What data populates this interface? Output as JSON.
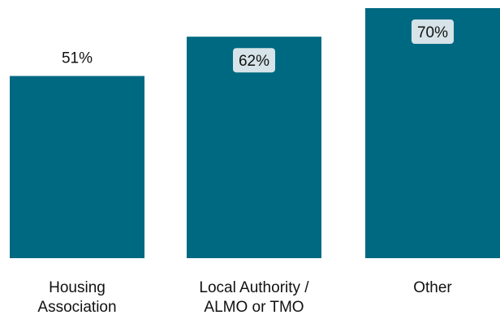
{
  "chart_data": {
    "type": "bar",
    "categories": [
      "Housing Association",
      "Local Authority / ALMO or TMO",
      "Other"
    ],
    "category_label_lines": [
      [
        "Housing",
        "Association"
      ],
      [
        "Local Authority /",
        "ALMO or TMO"
      ],
      [
        "Other"
      ]
    ],
    "values": [
      51,
      62,
      70
    ],
    "data_labels": [
      "51%",
      "62%",
      "70%"
    ],
    "unit": "%",
    "title": "",
    "xlabel": "",
    "ylabel": "",
    "ylim": [
      0,
      70
    ],
    "grid": false,
    "legend": "none",
    "colors": {
      "bar": "#006982",
      "label_box": "#d6e3e8",
      "text": "#111111"
    }
  }
}
